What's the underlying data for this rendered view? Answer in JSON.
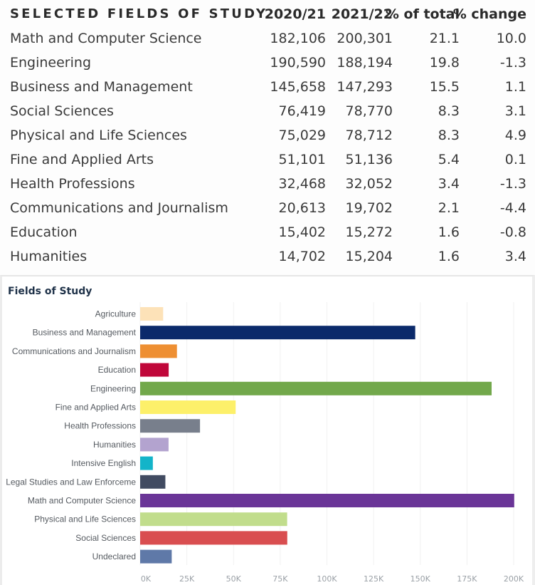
{
  "table": {
    "headers": {
      "field": "SELECTED FIELDS OF STUDY",
      "year1": "2020/21",
      "year2": "2021/22",
      "pct_total": "% of total",
      "pct_change": "% change"
    },
    "rows": [
      {
        "field": "Math and Computer Science",
        "year1": "182,106",
        "year2": "200,301",
        "pct_total": "21.1",
        "pct_change": "10.0"
      },
      {
        "field": "Engineering",
        "year1": "190,590",
        "year2": "188,194",
        "pct_total": "19.8",
        "pct_change": "-1.3"
      },
      {
        "field": "Business and Management",
        "year1": "145,658",
        "year2": "147,293",
        "pct_total": "15.5",
        "pct_change": "1.1"
      },
      {
        "field": "Social Sciences",
        "year1": "76,419",
        "year2": "78,770",
        "pct_total": "8.3",
        "pct_change": "3.1"
      },
      {
        "field": "Physical and Life Sciences",
        "year1": "75,029",
        "year2": "78,712",
        "pct_total": "8.3",
        "pct_change": "4.9"
      },
      {
        "field": "Fine and Applied Arts",
        "year1": "51,101",
        "year2": "51,136",
        "pct_total": "5.4",
        "pct_change": "0.1"
      },
      {
        "field": "Health Professions",
        "year1": "32,468",
        "year2": "32,052",
        "pct_total": "3.4",
        "pct_change": "-1.3"
      },
      {
        "field": "Communications and Journalism",
        "year1": "20,613",
        "year2": "19,702",
        "pct_total": "2.1",
        "pct_change": "-4.4"
      },
      {
        "field": "Education",
        "year1": "15,402",
        "year2": "15,272",
        "pct_total": "1.6",
        "pct_change": "-0.8"
      },
      {
        "field": "Humanities",
        "year1": "14,702",
        "year2": "15,204",
        "pct_total": "1.6",
        "pct_change": "3.4"
      }
    ]
  },
  "chart_data": {
    "type": "bar",
    "orientation": "horizontal",
    "title": "Fields of Study",
    "xlabel": "",
    "ylabel": "",
    "xlim": [
      0,
      200000
    ],
    "grid": true,
    "legend": "none",
    "x_ticks": [
      0,
      25000,
      50000,
      75000,
      100000,
      125000,
      150000,
      175000,
      200000
    ],
    "x_tick_labels": [
      "0K",
      "25K",
      "50K",
      "75K",
      "100K",
      "125K",
      "150K",
      "175K",
      "200K"
    ],
    "categories": [
      "Agriculture",
      "Business and Management",
      "Communications and Journalism",
      "Education",
      "Engineering",
      "Fine and Applied Arts",
      "Health Professions",
      "Humanities",
      "Intensive English",
      "Legal Studies and Law Enforceme",
      "Math and Computer Science",
      "Physical and Life Sciences",
      "Social Sciences",
      "Undeclared"
    ],
    "values": [
      12300,
      147293,
      19702,
      15272,
      188194,
      51136,
      32052,
      15204,
      6800,
      13500,
      200301,
      78712,
      78770,
      16900
    ],
    "colors": [
      "#fde2b8",
      "#0b2a6b",
      "#ee8f32",
      "#c0073a",
      "#72a84b",
      "#fdf06a",
      "#787f8c",
      "#b3a3cf",
      "#13b4c9",
      "#414b61",
      "#6a3597",
      "#c1dd8c",
      "#d94e50",
      "#5f79a8"
    ]
  }
}
